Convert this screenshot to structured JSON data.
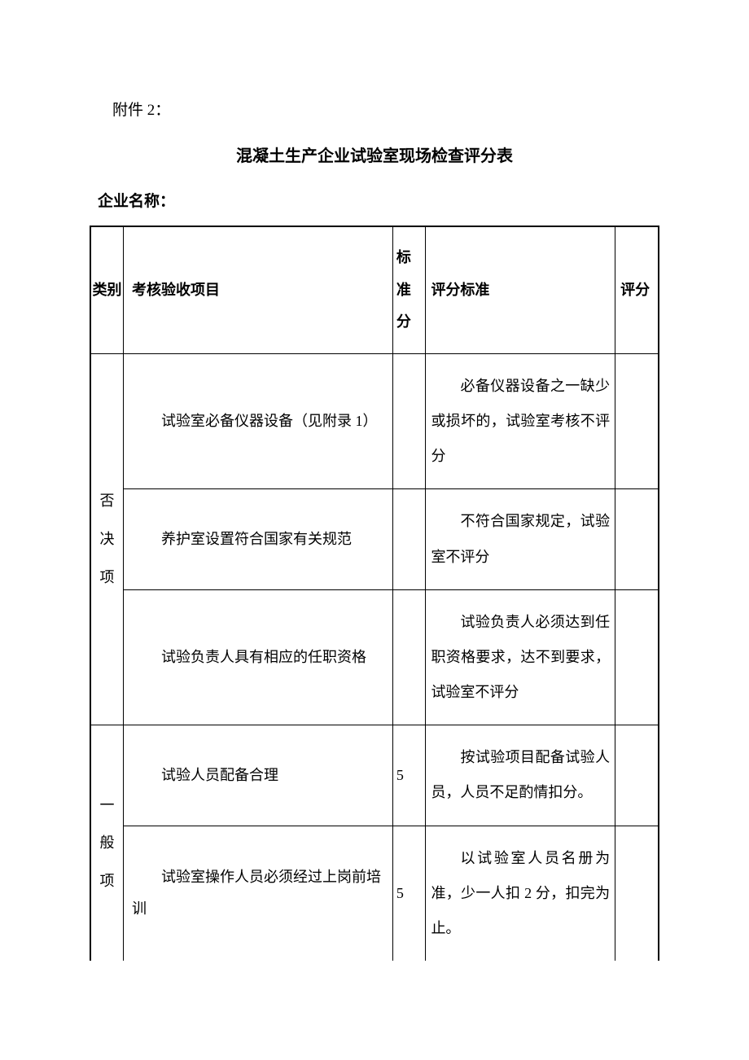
{
  "attachment_label": "附件 2：",
  "title": "混凝土生产企业试验室现场检查评分表",
  "company_label": "企业名称：",
  "headers": {
    "category": "类别",
    "item": "考核验收项目",
    "std_score": "标准分",
    "criteria": "评分标准",
    "rating": "评分"
  },
  "categories": {
    "veto": "否决项",
    "general": "一般项"
  },
  "rows": [
    {
      "item": "试验室必备仪器设备（见附录 1）",
      "std_score": "",
      "criteria": "必备仪器设备之一缺少或损坏的，试验室考核不评分",
      "rating": ""
    },
    {
      "item": "养护室设置符合国家有关规范",
      "std_score": "",
      "criteria": "不符合国家规定，试验室不评分",
      "rating": ""
    },
    {
      "item": "试验负责人具有相应的任职资格",
      "std_score": "",
      "criteria": "试验负责人必须达到任职资格要求，达不到要求，试验室不评分",
      "rating": ""
    },
    {
      "item": "试验人员配备合理",
      "std_score": "5",
      "criteria": "按试验项目配备试验人员，人员不足酌情扣分。",
      "rating": ""
    },
    {
      "item": "试验室操作人员必须经过上岗前培训",
      "std_score": "5",
      "criteria": "以试验室人员名册为准，少一人扣 2 分，扣完为止。",
      "rating": ""
    }
  ]
}
